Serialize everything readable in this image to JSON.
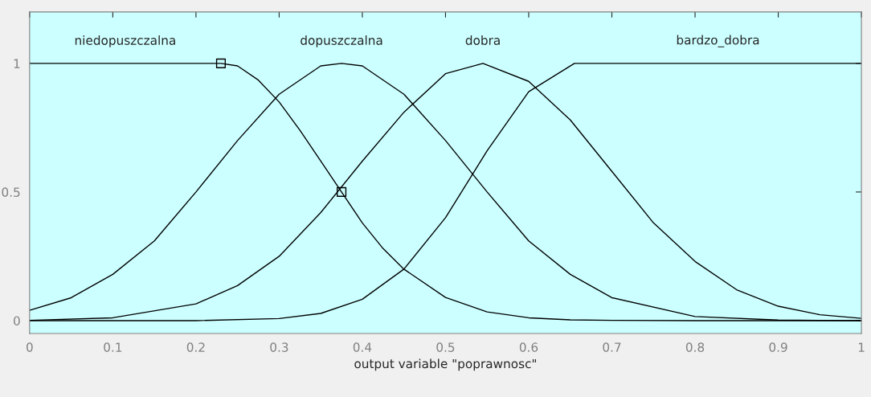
{
  "chart_data": {
    "type": "line",
    "xlabel": "output variable \"poprawnosc\"",
    "xlim": [
      0,
      1
    ],
    "ylim": [
      -0.05,
      1.2
    ],
    "xticks": [
      0,
      0.1,
      0.2,
      0.3,
      0.4,
      0.5,
      0.6,
      0.7,
      0.8,
      0.9,
      1
    ],
    "yticks": [
      0,
      0.5,
      1
    ],
    "grid": false,
    "legend": false,
    "marker": "none",
    "line_style": "solid",
    "series": [
      {
        "name": "niedopuszczalna",
        "color": "#000000",
        "x": [
          0,
          0.23,
          0.25,
          0.275,
          0.3,
          0.325,
          0.35,
          0.375,
          0.4,
          0.425,
          0.45,
          0.5,
          0.55,
          0.6,
          0.65,
          0.7,
          0.8,
          0.9,
          1
        ],
        "values": [
          1,
          1,
          0.99,
          0.935,
          0.85,
          0.74,
          0.62,
          0.5,
          0.38,
          0.28,
          0.2,
          0.09,
          0.034,
          0.011,
          0.003,
          0.001,
          0,
          0,
          0
        ]
      },
      {
        "name": "dopuszczalna",
        "color": "#000000",
        "x": [
          0,
          0.05,
          0.1,
          0.15,
          0.2,
          0.25,
          0.3,
          0.35,
          0.375,
          0.4,
          0.45,
          0.5,
          0.55,
          0.6,
          0.65,
          0.7,
          0.8,
          0.9,
          1
        ],
        "values": [
          0.04,
          0.089,
          0.18,
          0.31,
          0.5,
          0.7,
          0.88,
          0.99,
          1,
          0.99,
          0.88,
          0.7,
          0.5,
          0.31,
          0.18,
          0.089,
          0.016,
          0.002,
          0
        ]
      },
      {
        "name": "dobra",
        "color": "#000000",
        "x": [
          0,
          0.1,
          0.2,
          0.25,
          0.3,
          0.35,
          0.4,
          0.45,
          0.5,
          0.545,
          0.6,
          0.65,
          0.7,
          0.75,
          0.8,
          0.85,
          0.9,
          0.95,
          1
        ],
        "values": [
          0.001,
          0.011,
          0.065,
          0.136,
          0.25,
          0.42,
          0.62,
          0.81,
          0.96,
          1,
          0.93,
          0.78,
          0.58,
          0.38,
          0.23,
          0.12,
          0.056,
          0.023,
          0.009
        ]
      },
      {
        "name": "bardzo_dobra",
        "color": "#000000",
        "x": [
          0,
          0.2,
          0.3,
          0.35,
          0.4,
          0.45,
          0.5,
          0.55,
          0.6,
          0.655,
          1
        ],
        "values": [
          0,
          0,
          0.008,
          0.028,
          0.083,
          0.2,
          0.4,
          0.66,
          0.89,
          1,
          1
        ]
      },
      {
        "type": "scatter",
        "marker": "square",
        "color": "#000000",
        "x": [
          0.23,
          0.375
        ],
        "values": [
          1,
          0.5
        ]
      }
    ]
  }
}
